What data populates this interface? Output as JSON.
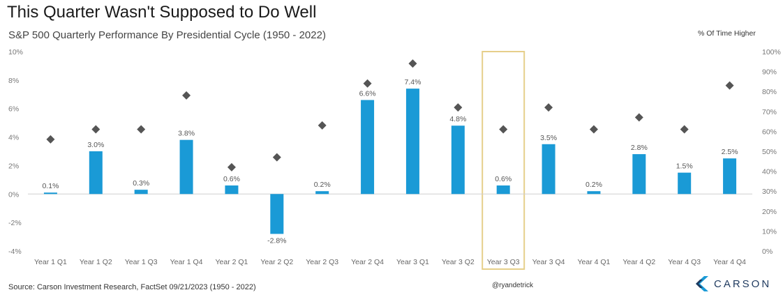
{
  "header": {
    "title": "This Quarter Wasn't Supposed to Do Well",
    "subtitle": "S&P 500 Quarterly Performance By Presidential Cycle (1950 - 2022)",
    "right_axis_label": "% Of Time Higher"
  },
  "footer": {
    "source": "Source: Carson Investment Research, FactSet 09/21/2023 (1950 - 2022)",
    "handle": "@ryandetrick",
    "logo_text": "CARSON",
    "logo_icon": "carson-chevron-logo-icon"
  },
  "colors": {
    "bar": "#1a9ad6",
    "marker": "#555555",
    "highlight": "#e6cf8a",
    "zero_line": "#cfcfcf"
  },
  "chart_data": {
    "type": "bar",
    "categories": [
      "Year 1 Q1",
      "Year 1 Q2",
      "Year 1 Q3",
      "Year 1 Q4",
      "Year 2 Q1",
      "Year 2 Q2",
      "Year 2 Q3",
      "Year 2 Q4",
      "Year 3 Q1",
      "Year 3 Q2",
      "Year 3 Q3",
      "Year 3 Q4",
      "Year 4 Q1",
      "Year 4 Q2",
      "Year 4 Q3",
      "Year 4 Q4"
    ],
    "values": [
      0.1,
      3.0,
      0.3,
      3.8,
      0.6,
      -2.8,
      0.2,
      6.6,
      7.4,
      4.8,
      0.6,
      3.5,
      0.2,
      2.8,
      1.5,
      2.5
    ],
    "value_labels": [
      "0.1%",
      "3.0%",
      "0.3%",
      "3.8%",
      "0.6%",
      "-2.8%",
      "0.2%",
      "6.6%",
      "7.4%",
      "4.8%",
      "0.6%",
      "3.5%",
      "0.2%",
      "2.8%",
      "1.5%",
      "2.5%"
    ],
    "pct_time_higher": [
      56,
      61,
      61,
      78,
      42,
      47,
      63,
      84,
      94,
      72,
      61,
      72,
      61,
      67,
      61,
      83
    ],
    "ylim": [
      -4,
      10
    ],
    "yticks": [
      -4,
      -2,
      0,
      2,
      4,
      6,
      8,
      10
    ],
    "ytick_labels": [
      "-4%",
      "-2%",
      "0%",
      "2%",
      "4%",
      "6%",
      "8%",
      "10%"
    ],
    "y2lim": [
      0,
      100
    ],
    "y2ticks": [
      0,
      10,
      20,
      30,
      40,
      50,
      60,
      70,
      80,
      90,
      100
    ],
    "y2tick_labels": [
      "0%",
      "10%",
      "20%",
      "30%",
      "40%",
      "50%",
      "60%",
      "70%",
      "80%",
      "90%",
      "100%"
    ],
    "highlight_category": "Year 3 Q3",
    "grid": false
  }
}
